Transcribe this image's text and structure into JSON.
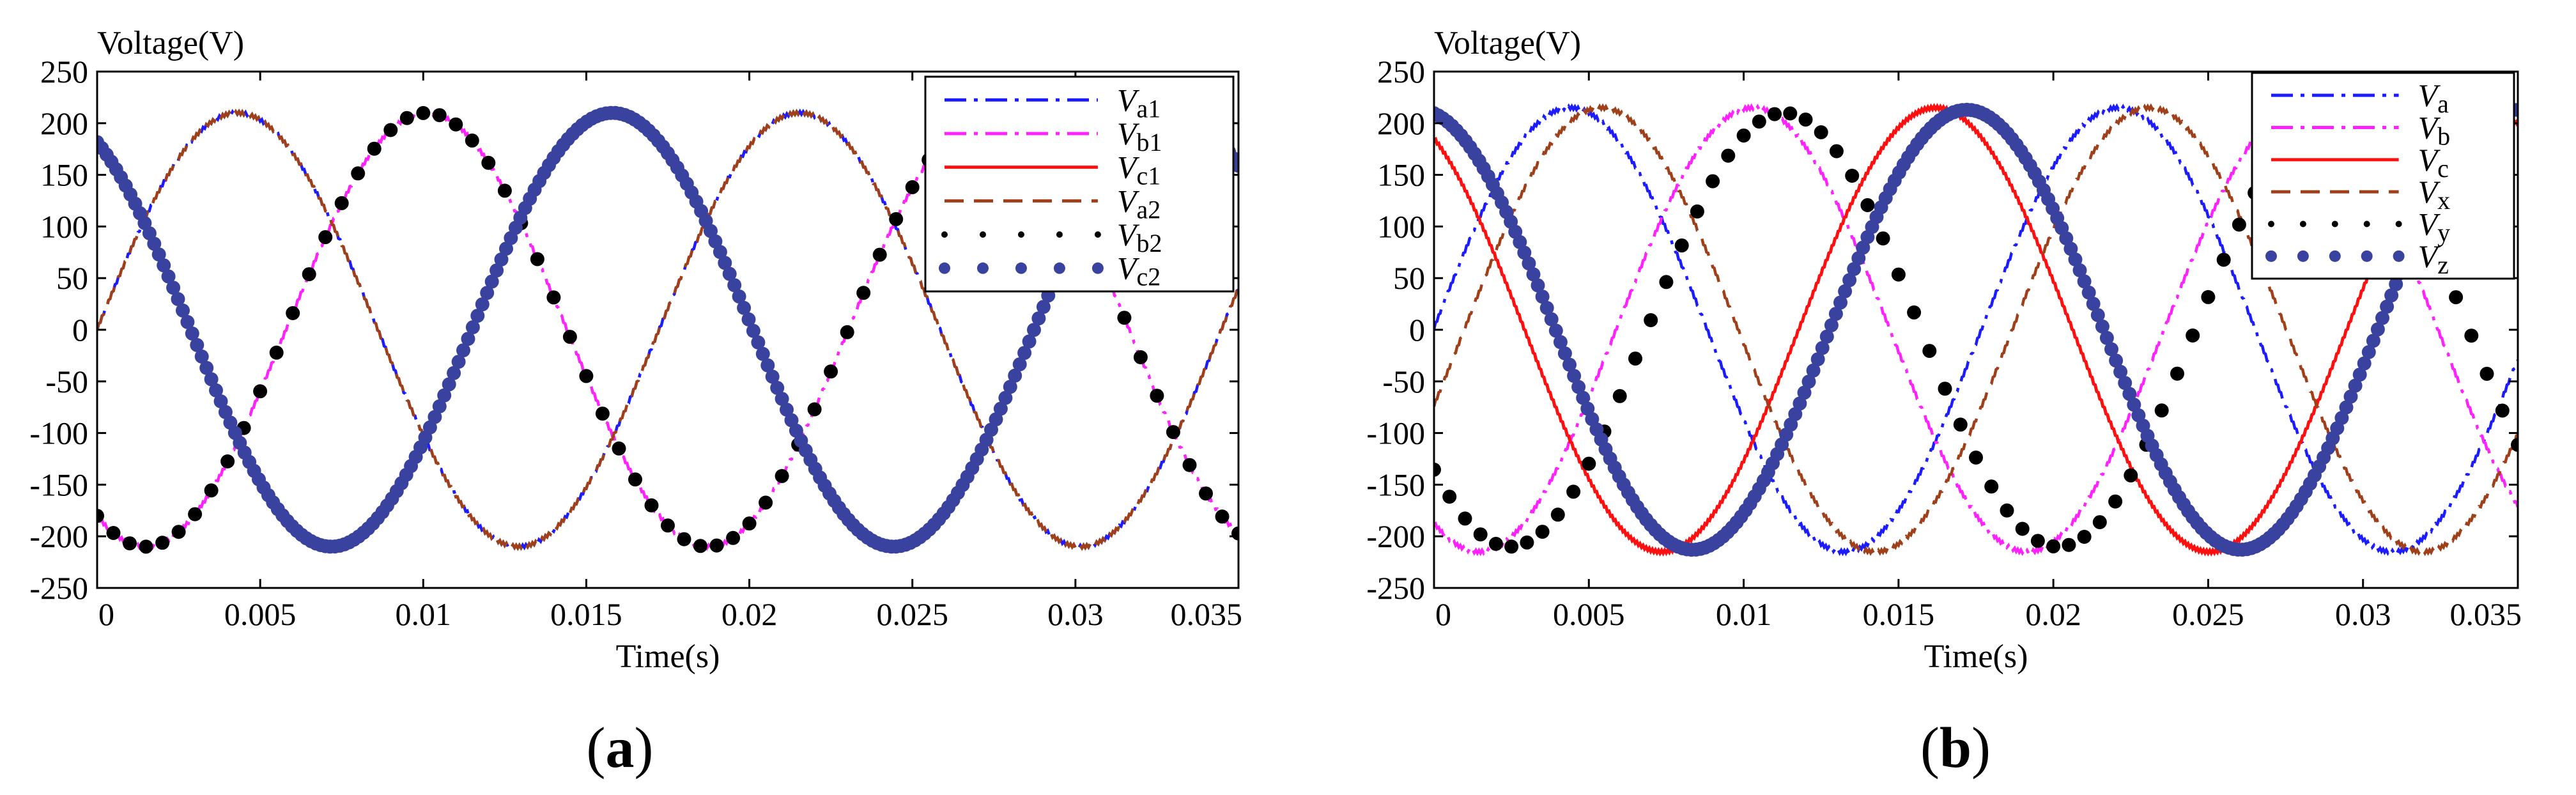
{
  "chart_data": [
    {
      "type": "line",
      "panel_label": "a",
      "ylabel": "Voltage(V)",
      "xlabel": "Time(s)",
      "xlim": [
        0,
        0.035
      ],
      "ylim": [
        -250,
        250
      ],
      "xticks": [
        0,
        0.005,
        0.01,
        0.015,
        0.02,
        0.025,
        0.03,
        0.035
      ],
      "xtick_labels": [
        "0",
        "0.005",
        "0.01",
        "0.015",
        "0.02",
        "0.025",
        "0.03",
        "0.035"
      ],
      "yticks": [
        -250,
        -200,
        -150,
        -100,
        -50,
        0,
        50,
        100,
        150,
        200,
        250
      ],
      "ytick_labels": [
        "-250",
        "-200",
        "-150",
        "-100",
        "-50",
        "0",
        "50",
        "100",
        "150",
        "200",
        "250"
      ],
      "legend_position": "top-right",
      "series": [
        {
          "name": "Va1",
          "sym": "V",
          "sub": "a1",
          "style": "dashdot",
          "color": "#1c1cff",
          "amplitude": 210,
          "frequency_hz": 58,
          "phase_deg": 0,
          "peak_time_s": 0.0043
        },
        {
          "name": "Vb1",
          "sym": "V",
          "sub": "b1",
          "style": "dashdot",
          "color": "#ff22ff",
          "amplitude": 210,
          "frequency_hz": 58,
          "phase_deg": -120,
          "peak_time_s": 0.0101
        },
        {
          "name": "Vc1",
          "sym": "V",
          "sub": "c1",
          "style": "solid",
          "color": "#ff1010",
          "amplitude": 210,
          "frequency_hz": 58,
          "phase_deg": 120,
          "peak_time_s": 0.0158
        },
        {
          "name": "Va2",
          "sym": "V",
          "sub": "a2",
          "style": "dashed",
          "color": "#a0401a",
          "amplitude": 210,
          "frequency_hz": 58,
          "phase_deg": 0,
          "peak_time_s": 0.0043
        },
        {
          "name": "Vb2",
          "sym": "V",
          "sub": "b2",
          "style": "bigdots",
          "color": "#000000",
          "amplitude": 210,
          "frequency_hz": 58,
          "phase_deg": -120,
          "peak_time_s": 0.0101
        },
        {
          "name": "Vc2",
          "sym": "V",
          "sub": "c2",
          "style": "densedots",
          "color": "#3a42a0",
          "amplitude": 210,
          "frequency_hz": 58,
          "phase_deg": 120,
          "peak_time_s": 0.0158
        }
      ]
    },
    {
      "type": "line",
      "panel_label": "b",
      "ylabel": "Voltage(V)",
      "xlabel": "Time(s)",
      "xlim": [
        0,
        0.035
      ],
      "ylim": [
        -250,
        250
      ],
      "xticks": [
        0,
        0.005,
        0.01,
        0.015,
        0.02,
        0.025,
        0.03,
        0.035
      ],
      "xtick_labels": [
        "0",
        "0.005",
        "0.01",
        "0.015",
        "0.02",
        "0.025",
        "0.03",
        "0.035"
      ],
      "yticks": [
        -250,
        -200,
        -150,
        -100,
        -50,
        0,
        50,
        100,
        150,
        200,
        250
      ],
      "ytick_labels": [
        "-250",
        "-200",
        "-150",
        "-100",
        "-50",
        "0",
        "50",
        "100",
        "150",
        "200",
        "250"
      ],
      "legend_position": "top-right",
      "series": [
        {
          "name": "Va",
          "sym": "V",
          "sub": "a",
          "style": "dashdot",
          "color": "#1c1cff",
          "amplitude": 215,
          "frequency_hz": 56.5,
          "phase_deg": 0,
          "peak_time_s": 0.0044
        },
        {
          "name": "Vb",
          "sym": "V",
          "sub": "b",
          "style": "dashdot",
          "color": "#ff22ff",
          "amplitude": 215,
          "frequency_hz": 56.5,
          "phase_deg": -120,
          "peak_time_s": 0.0103
        },
        {
          "name": "Vc",
          "sym": "V",
          "sub": "c",
          "style": "solid",
          "color": "#ff1010",
          "amplitude": 215,
          "frequency_hz": 56.5,
          "phase_deg": 120,
          "peak_time_s": 0.0162
        },
        {
          "name": "Vx",
          "sym": "V",
          "sub": "x",
          "style": "dashed",
          "color": "#a0401a",
          "amplitude": 215,
          "frequency_hz": 56.5,
          "phase_deg": -20,
          "peak_time_s": 0.0054
        },
        {
          "name": "Vy",
          "sym": "V",
          "sub": "y",
          "style": "bigdots",
          "color": "#000000",
          "amplitude": 210,
          "frequency_hz": 56.5,
          "phase_deg": -140,
          "peak_time_s": 0.0113
        },
        {
          "name": "Vz",
          "sym": "V",
          "sub": "z",
          "style": "densedots",
          "color": "#3a42a0",
          "amplitude": 213,
          "frequency_hz": 56.5,
          "phase_deg": 100,
          "peak_time_s": 0.0172
        }
      ]
    }
  ]
}
